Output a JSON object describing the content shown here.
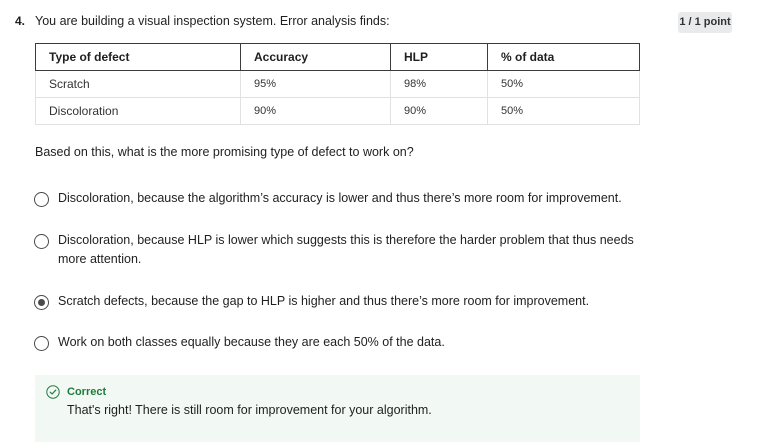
{
  "question": {
    "number": "4.",
    "prompt": "You are building a visual inspection system. Error analysis finds:",
    "points": "1 / 1 point"
  },
  "table": {
    "headers": [
      "Type of defect",
      "Accuracy",
      "HLP",
      "% of data"
    ],
    "rows": [
      [
        "Scratch",
        "95%",
        "98%",
        "50%"
      ],
      [
        "Discoloration",
        "90%",
        "90%",
        "50%"
      ]
    ]
  },
  "ask": "Based on this, what is the more promising type of defect to work on?",
  "options": [
    {
      "label": "Discoloration, because the algorithm’s accuracy is lower and thus there’s more room for improvement.",
      "selected": false
    },
    {
      "label": "Discoloration, because HLP is lower which suggests this is therefore the harder problem that thus needs more attention.",
      "selected": false
    },
    {
      "label": "Scratch defects, because the gap to HLP is higher and thus there’s more room for improvement.",
      "selected": true
    },
    {
      "label": "Work on both classes equally because they are each 50% of the data.",
      "selected": false
    }
  ],
  "feedback": {
    "title": "Correct",
    "text": "That's right! There is still room for improvement for your algorithm.",
    "icon": "check-circle-icon",
    "color": "#1f7a3d"
  }
}
